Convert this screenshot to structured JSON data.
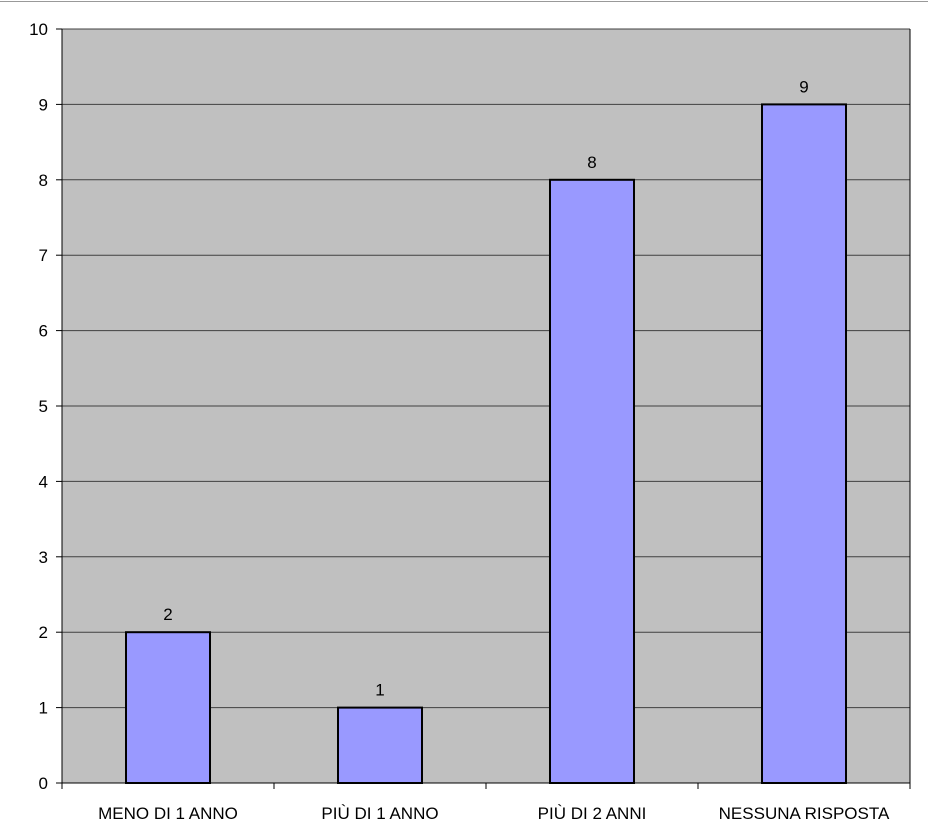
{
  "chart_data": {
    "type": "bar",
    "categories": [
      "MENO DI 1 ANNO",
      "PIÙ DI 1 ANNO",
      "PIÙ DI 2 ANNI",
      "NESSUNA RISPOSTA"
    ],
    "values": [
      2,
      1,
      8,
      9
    ],
    "title": "",
    "xlabel": "",
    "ylabel": "",
    "ylim": [
      0,
      10
    ],
    "yticks": [
      0,
      1,
      2,
      3,
      4,
      5,
      6,
      7,
      8,
      9,
      10
    ],
    "grid": true,
    "legend": "none",
    "colors": {
      "bar_fill": "#9999ff",
      "bar_stroke": "#000000",
      "plot_background": "#c0c0c0",
      "gridline": "#404040"
    }
  }
}
